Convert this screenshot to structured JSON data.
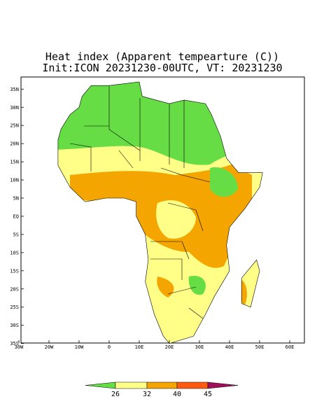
{
  "header": {
    "title": "Heat index (Apparent tempearture (C))",
    "subtitle": "Init:ICON 20231230-00UTC, VT: 20231230"
  },
  "map": {
    "lat_ticks": [
      "35N",
      "30N",
      "25N",
      "20N",
      "15N",
      "10N",
      "5N",
      "EQ",
      "5S",
      "10S",
      "15S",
      "20S",
      "25S",
      "30S",
      "35S"
    ],
    "lon_ticks": [
      "30W",
      "20W",
      "10W",
      "0",
      "10E",
      "20E",
      "30E",
      "40E",
      "50E",
      "60E"
    ]
  },
  "colorbar": {
    "ticks": [
      "26",
      "32",
      "40",
      "45"
    ],
    "colors": [
      "#66dd44",
      "#ffff88",
      "#f5a500",
      "#ff5a10",
      "#a0105a"
    ]
  }
}
